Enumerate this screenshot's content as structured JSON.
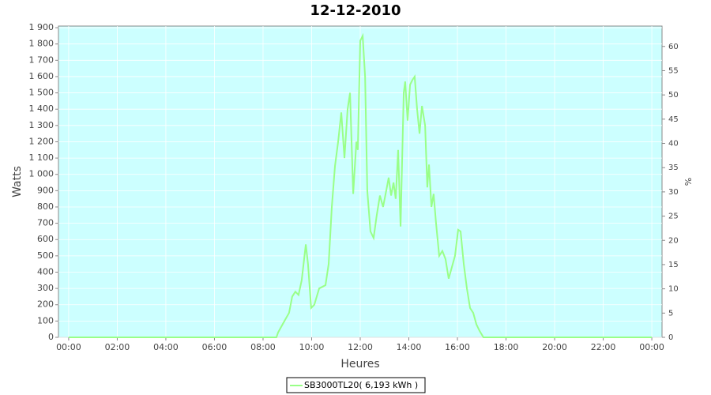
{
  "chart_data": {
    "type": "line",
    "title": "12-12-2010",
    "x_label": "Heures",
    "y_label": "Watts",
    "y2_label": "%",
    "x": [
      0,
      8.55,
      8.62,
      8.88,
      9.07,
      9.2,
      9.33,
      9.46,
      9.59,
      9.76,
      9.85,
      9.98,
      10.11,
      10.31,
      10.44,
      10.57,
      10.7,
      10.83,
      10.96,
      11.09,
      11.22,
      11.35,
      11.48,
      11.58,
      11.71,
      11.84,
      11.9,
      12.0,
      12.1,
      12.2,
      12.29,
      12.42,
      12.55,
      12.68,
      12.81,
      12.94,
      13.07,
      13.17,
      13.27,
      13.37,
      13.46,
      13.56,
      13.66,
      13.79,
      13.85,
      13.95,
      14.05,
      14.15,
      14.24,
      14.34,
      14.44,
      14.54,
      14.67,
      14.76,
      14.83,
      14.93,
      15.02,
      15.12,
      15.25,
      15.38,
      15.51,
      15.64,
      15.77,
      15.9,
      16.03,
      16.13,
      16.26,
      16.39,
      16.52,
      16.65,
      16.78,
      16.91,
      17.07,
      24
    ],
    "series": [
      {
        "name": "SB3000TL20( 6,193 kWh )",
        "color": "#99ff88",
        "values": [
          0,
          0,
          30,
          100,
          150,
          250,
          280,
          260,
          350,
          570,
          450,
          180,
          200,
          300,
          310,
          320,
          450,
          800,
          1050,
          1200,
          1380,
          1100,
          1400,
          1500,
          880,
          1200,
          1150,
          1820,
          1850,
          1600,
          900,
          650,
          610,
          750,
          870,
          800,
          900,
          980,
          870,
          950,
          850,
          1150,
          680,
          1500,
          1570,
          1330,
          1550,
          1580,
          1600,
          1400,
          1250,
          1420,
          1300,
          920,
          1060,
          800,
          880,
          700,
          500,
          530,
          480,
          360,
          430,
          500,
          660,
          650,
          450,
          300,
          180,
          150,
          80,
          40,
          0,
          0
        ]
      }
    ],
    "xlim": [
      -0.42,
      24.42
    ],
    "xticks": [
      {
        "value": 0,
        "label": "00:00"
      },
      {
        "value": 2,
        "label": "02:00"
      },
      {
        "value": 4,
        "label": "04:00"
      },
      {
        "value": 6,
        "label": "06:00"
      },
      {
        "value": 8,
        "label": "08:00"
      },
      {
        "value": 10,
        "label": "10:00"
      },
      {
        "value": 12,
        "label": "12:00"
      },
      {
        "value": 14,
        "label": "14:00"
      },
      {
        "value": 16,
        "label": "16:00"
      },
      {
        "value": 18,
        "label": "18:00"
      },
      {
        "value": 20,
        "label": "20:00"
      },
      {
        "value": 22,
        "label": "22:00"
      },
      {
        "value": 24,
        "label": "00:00"
      }
    ],
    "ylim": [
      0,
      1910
    ],
    "yticks": [
      0,
      100,
      200,
      300,
      400,
      500,
      600,
      700,
      800,
      900,
      {
        "value": 1000,
        "label": "1 000"
      },
      {
        "value": 1100,
        "label": "1 100"
      },
      {
        "value": 1200,
        "label": "1 200"
      },
      {
        "value": 1300,
        "label": "1 300"
      },
      {
        "value": 1400,
        "label": "1 400"
      },
      {
        "value": 1500,
        "label": "1 500"
      },
      {
        "value": 1600,
        "label": "1 600"
      },
      {
        "value": 1700,
        "label": "1 700"
      },
      {
        "value": 1800,
        "label": "1 800"
      },
      {
        "value": 1900,
        "label": "1 900"
      }
    ],
    "y2lim": [
      0,
      64.2
    ],
    "y2ticks": [
      0,
      5,
      10,
      15,
      20,
      25,
      30,
      35,
      40,
      45,
      50,
      55,
      60
    ],
    "grid": true,
    "plot_background": "#ccffff",
    "legend": "bottom"
  }
}
